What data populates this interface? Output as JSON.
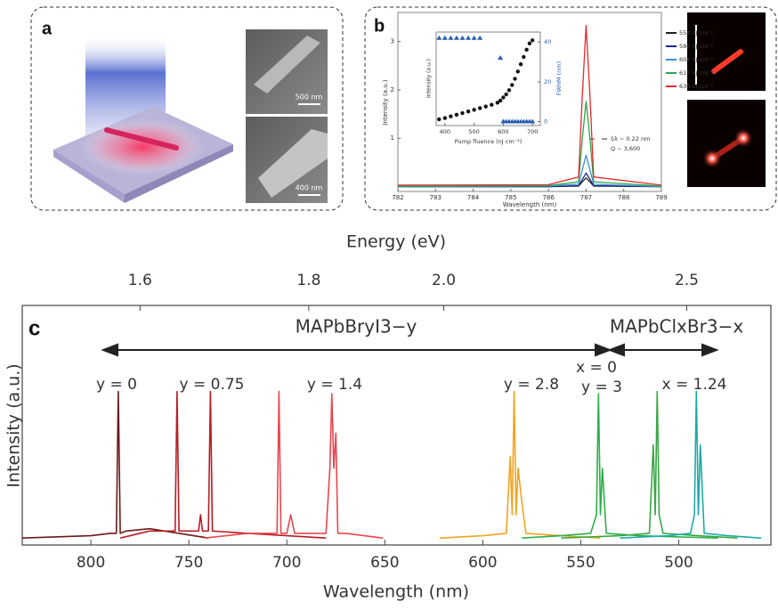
{
  "figure": {
    "panels": [
      "a",
      "b",
      "c"
    ],
    "scale_bars": [
      "500 nm",
      "400 nm"
    ]
  },
  "chart_data": [
    {
      "type": "line",
      "x_label": "Wavelength (nm)",
      "y_label": "Intensity (a.u.)",
      "xlim": [
        782,
        789
      ],
      "xticks": [
        782,
        783,
        784,
        785,
        786,
        787,
        788,
        789
      ],
      "ylim": [
        -0.1,
        3.6
      ],
      "yticks": [
        1,
        2,
        3
      ],
      "annotations": [
        "δλ ~ 0.22 nm",
        "Q ~ 3,600"
      ],
      "series": [
        {
          "name": "554 nJ cm⁻²",
          "color": "#222222",
          "x": [
            782,
            786,
            786.8,
            786.9,
            787,
            787.1,
            787.2,
            789
          ],
          "values": [
            0,
            0,
            0.01,
            0.1,
            0.18,
            0.1,
            0.01,
            0
          ]
        },
        {
          "name": "580 nJ cm⁻²",
          "color": "#1b2a80",
          "x": [
            782,
            786,
            786.8,
            786.9,
            787,
            787.1,
            787.2,
            789
          ],
          "values": [
            0,
            0,
            0.02,
            0.15,
            0.28,
            0.15,
            0.02,
            0
          ]
        },
        {
          "name": "604 nJ cm⁻²",
          "color": "#3a8fd6",
          "x": [
            782,
            786,
            786.8,
            786.9,
            787,
            787.1,
            787.2,
            789
          ],
          "values": [
            0,
            0.01,
            0.05,
            0.35,
            0.65,
            0.35,
            0.05,
            0
          ]
        },
        {
          "name": "617 nJ cm⁻²",
          "color": "#2aa84a",
          "x": [
            782,
            786,
            786.8,
            786.9,
            787,
            787.1,
            787.2,
            789
          ],
          "values": [
            0.01,
            0.02,
            0.1,
            1.0,
            1.76,
            1.0,
            0.1,
            0.01
          ]
        },
        {
          "name": "630 nJ cm⁻²",
          "color": "#e32a2a",
          "x": [
            782,
            786,
            786.8,
            786.9,
            787,
            787.1,
            787.2,
            789
          ],
          "values": [
            0.03,
            0.04,
            0.2,
            1.9,
            3.33,
            1.9,
            0.2,
            0.03
          ]
        }
      ]
    },
    {
      "type": "scatter",
      "x_label": "Pump fluence (nJ cm⁻²)",
      "y_label": "Intensity (a.u.)",
      "y2_label": "FWHM (nm)",
      "xlim": [
        370,
        727
      ],
      "xticks": [
        400,
        500,
        600,
        700
      ],
      "ylim": [
        0,
        4.5
      ],
      "y2lim": [
        -2,
        45
      ],
      "y2ticks": [
        0,
        20,
        40
      ],
      "series": [
        {
          "color": "#111111",
          "marker": "circle",
          "x": [
            380,
            400,
            420,
            440,
            460,
            480,
            500,
            520,
            540,
            560,
            580,
            590,
            600,
            610,
            620,
            630,
            640,
            650,
            660,
            670,
            680,
            690,
            700
          ],
          "values": [
            0.3,
            0.36,
            0.44,
            0.52,
            0.6,
            0.68,
            0.76,
            0.84,
            0.92,
            1.0,
            1.1,
            1.2,
            1.35,
            1.5,
            1.7,
            1.95,
            2.25,
            2.6,
            2.95,
            3.3,
            3.65,
            3.95,
            4.1
          ]
        },
        {
          "color": "#2a5db0",
          "marker": "triangle",
          "axis": "y2",
          "x": [
            380,
            400,
            420,
            440,
            460,
            480,
            500,
            520,
            590,
            600,
            610,
            620,
            630,
            640,
            650,
            660,
            670,
            680,
            690,
            700
          ],
          "values": [
            42,
            42,
            42,
            42,
            42,
            42,
            42,
            42,
            32,
            0,
            0,
            0,
            0,
            0,
            0,
            0,
            0,
            0,
            0,
            0
          ]
        }
      ]
    },
    {
      "type": "line",
      "x_label": "Wavelength (nm)",
      "x2_label": "Energy (eV)",
      "y_label": "Intensity (a.u.)",
      "xlim": [
        835,
        453
      ],
      "xticks": [
        800,
        750,
        700,
        650,
        600,
        550,
        500
      ],
      "x2ticks": [
        1.6,
        1.8,
        {
          "value": 2,
          "label": "2.0"
        },
        2.5
      ],
      "ylim": [
        -0.03,
        1
      ],
      "annotations": [
        "MAPbBryI3−y",
        "MAPbClxBr3−x",
        "y = 0",
        "y = 0.75",
        "y = 1.4",
        "y = 2.8",
        "x = 0",
        "y = 3",
        "x = 1.24"
      ],
      "series": [
        {
          "color": "#6a1a1a",
          "x": [
            835,
            800,
            790,
            787,
            786,
            785,
            782,
            770,
            755,
            740
          ],
          "values": [
            0,
            0.01,
            0.02,
            0.02,
            0.63,
            0.02,
            0.03,
            0.04,
            0.02,
            0
          ]
        },
        {
          "color": "#b81d24",
          "x": [
            785,
            770,
            757,
            756,
            755,
            745,
            744,
            743,
            740,
            739,
            738,
            720,
            700,
            680
          ],
          "values": [
            0,
            0.03,
            0.03,
            0.63,
            0.03,
            0.03,
            0.1,
            0.03,
            0.03,
            0.63,
            0.03,
            0.02,
            0.01,
            0
          ]
        },
        {
          "color": "#e9464f",
          "x": [
            742,
            720,
            705,
            704,
            703,
            700,
            698,
            696,
            680,
            678,
            677,
            676,
            675,
            674,
            670,
            651
          ],
          "values": [
            0,
            0.02,
            0.02,
            0.63,
            0.02,
            0.02,
            0.1,
            0.02,
            0.02,
            0.3,
            0.62,
            0.3,
            0.45,
            0.02,
            0.02,
            0
          ]
        },
        {
          "color": "#f2a41f",
          "x": [
            622,
            600,
            588,
            586,
            585,
            584,
            583,
            582,
            580,
            578,
            560,
            540
          ],
          "values": [
            0,
            0.01,
            0.02,
            0.35,
            0.1,
            0.63,
            0.1,
            0.3,
            0.15,
            0.02,
            0.01,
            0
          ]
        },
        {
          "color": "#2fae4a",
          "x": [
            580,
            560,
            545,
            542,
            541,
            540,
            539,
            537,
            520,
            480
          ],
          "values": [
            0,
            0.01,
            0.02,
            0.1,
            0.62,
            0.1,
            0.3,
            0.02,
            0.01,
            0
          ]
        },
        {
          "color": "#3aa846",
          "x": [
            560,
            530,
            515,
            513,
            512,
            511,
            510,
            508,
            490,
            470
          ],
          "values": [
            0,
            0.01,
            0.02,
            0.4,
            0.1,
            0.63,
            0.1,
            0.02,
            0.01,
            0
          ]
        },
        {
          "color": "#1ea9a6",
          "x": [
            530,
            505,
            494,
            492,
            491,
            490,
            489,
            487,
            475,
            458
          ],
          "values": [
            0,
            0.01,
            0.02,
            0.1,
            0.63,
            0.1,
            0.4,
            0.02,
            0.01,
            0
          ]
        }
      ]
    }
  ]
}
